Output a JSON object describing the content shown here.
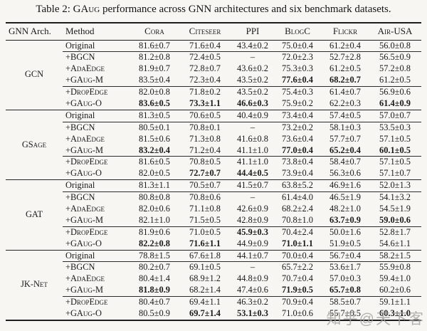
{
  "title": {
    "prefix": "Table 2: ",
    "smallcaps_word": "GAug",
    "suffix": " performance across GNN architectures and six benchmark datasets."
  },
  "table": {
    "headers": [
      {
        "label": "GNN Arch.",
        "sc": false
      },
      {
        "label": "Method",
        "sc": false
      },
      {
        "label": "Cora",
        "sc": true
      },
      {
        "label": "Citeseer",
        "sc": true
      },
      {
        "label": "PPI",
        "sc": true
      },
      {
        "label": "BlogC",
        "sc": true
      },
      {
        "label": "Flickr",
        "sc": true
      },
      {
        "label": "Air-USA",
        "sc": true
      }
    ],
    "groups": [
      {
        "arch": "GCN",
        "arch_sc": false,
        "rows": [
          {
            "method": "Original",
            "sc": false,
            "values": [
              "81.6±0.7",
              "71.6±0.4",
              "43.4±0.2",
              "75.0±0.4",
              "61.2±0.4",
              "56.0±0.8"
            ],
            "bold": []
          },
          {
            "method": "+BGCN",
            "sc": false,
            "values": [
              "81.2±0.8",
              "72.4±0.5",
              "–",
              "72.0±2.3",
              "52.7±2.8",
              "56.5±0.9"
            ],
            "bold": []
          },
          {
            "method": "+AdaEdge",
            "sc": true,
            "values": [
              "81.9±0.7",
              "72.8±0.7",
              "43.6±0.2",
              "75.3±0.3",
              "61.2±0.5",
              "57.2±0.8"
            ],
            "bold": []
          },
          {
            "method": "+GAug-M",
            "sc": true,
            "values": [
              "83.5±0.4",
              "72.3±0.4",
              "43.5±0.2",
              "77.6±0.4",
              "68.2±0.7",
              "61.2±0.5"
            ],
            "bold": [
              3,
              4
            ]
          },
          {
            "method": "+DropEdge",
            "sc": true,
            "values": [
              "82.0±0.8",
              "71.8±0.2",
              "43.5±0.2",
              "75.4±0.3",
              "61.4±0.7",
              "56.9±0.6"
            ],
            "bold": []
          },
          {
            "method": "+GAug-O",
            "sc": true,
            "values": [
              "83.6±0.5",
              "73.3±1.1",
              "46.6±0.3",
              "75.9±0.2",
              "62.2±0.3",
              "61.4±0.9"
            ],
            "bold": [
              0,
              1,
              2,
              5
            ]
          }
        ]
      },
      {
        "arch": "GSage",
        "arch_sc": true,
        "rows": [
          {
            "method": "Original",
            "sc": false,
            "values": [
              "81.3±0.5",
              "70.6±0.5",
              "40.4±0.9",
              "73.4±0.4",
              "57.4±0.5",
              "57.0±0.7"
            ],
            "bold": []
          },
          {
            "method": "+BGCN",
            "sc": false,
            "values": [
              "80.5±0.1",
              "70.8±0.1",
              "–",
              "73.2±0.2",
              "58.1±0.3",
              "53.5±0.3"
            ],
            "bold": []
          },
          {
            "method": "+AdaEdge",
            "sc": true,
            "values": [
              "81.5±0.6",
              "71.3±0.8",
              "41.6±0.8",
              "73.6±0.4",
              "57.7±0.7",
              "57.1±0.5"
            ],
            "bold": []
          },
          {
            "method": "+GAug-M",
            "sc": true,
            "values": [
              "83.2±0.4",
              "71.2±0.4",
              "41.1±1.0",
              "77.0±0.4",
              "65.2±0.4",
              "60.1±0.5"
            ],
            "bold": [
              0,
              3,
              4,
              5
            ]
          },
          {
            "method": "+DropEdge",
            "sc": true,
            "values": [
              "81.6±0.5",
              "70.8±0.5",
              "41.1±1.0",
              "73.8±0.4",
              "58.4±0.7",
              "57.1±0.5"
            ],
            "bold": []
          },
          {
            "method": "+GAug-O",
            "sc": true,
            "values": [
              "82.0±0.5",
              "72.7±0.7",
              "44.4±0.5",
              "73.9±0.4",
              "56.3±0.6",
              "57.1±0.7"
            ],
            "bold": [
              1,
              2
            ]
          }
        ]
      },
      {
        "arch": "GAT",
        "arch_sc": false,
        "rows": [
          {
            "method": "Original",
            "sc": false,
            "values": [
              "81.3±1.1",
              "70.5±0.7",
              "41.5±0.7",
              "63.8±5.2",
              "46.9±1.6",
              "52.0±1.3"
            ],
            "bold": []
          },
          {
            "method": "+BGCN",
            "sc": false,
            "values": [
              "80.8±0.8",
              "70.8±0.6",
              "–",
              "61.4±4.0",
              "46.5±1.9",
              "54.1±3.2"
            ],
            "bold": []
          },
          {
            "method": "+AdaEdge",
            "sc": true,
            "values": [
              "82.0±0.6",
              "71.1±0.8",
              "42.6±0.9",
              "68.2±2.4",
              "48.2±1.0",
              "54.5±1.9"
            ],
            "bold": []
          },
          {
            "method": "+GAug-M",
            "sc": true,
            "values": [
              "82.1±1.0",
              "71.5±0.5",
              "42.8±0.9",
              "70.8±1.0",
              "63.7±0.9",
              "59.0±0.6"
            ],
            "bold": [
              4,
              5
            ]
          },
          {
            "method": "+DropEdge",
            "sc": true,
            "values": [
              "81.9±0.6",
              "71.0±0.5",
              "45.9±0.3",
              "70.4±2.4",
              "50.0±1.6",
              "52.8±1.7"
            ],
            "bold": [
              2
            ]
          },
          {
            "method": "+GAug-O",
            "sc": true,
            "values": [
              "82.2±0.8",
              "71.6±1.1",
              "44.9±0.9",
              "71.0±1.1",
              "51.9±0.5",
              "54.6±1.1"
            ],
            "bold": [
              0,
              1,
              3
            ]
          }
        ]
      },
      {
        "arch": "JK-Net",
        "arch_sc": true,
        "rows": [
          {
            "method": "Original",
            "sc": false,
            "values": [
              "78.8±1.5",
              "67.6±1.8",
              "44.1±0.7",
              "70.0±0.4",
              "56.7±0.4",
              "58.2±1.5"
            ],
            "bold": []
          },
          {
            "method": "+BGCN",
            "sc": false,
            "values": [
              "80.2±0.7",
              "69.1±0.5",
              "–",
              "65.7±2.2",
              "53.6±1.7",
              "55.9±0.8"
            ],
            "bold": []
          },
          {
            "method": "+AdaEdge",
            "sc": true,
            "values": [
              "80.4±1.4",
              "68.9±1.2",
              "44.8±0.9",
              "70.7±0.4",
              "57.0±0.3",
              "59.4±1.0"
            ],
            "bold": []
          },
          {
            "method": "+GAug-M",
            "sc": true,
            "values": [
              "81.8±0.9",
              "68.2±1.4",
              "47.4±0.6",
              "71.9±0.5",
              "65.7±0.8",
              "60.2±0.6"
            ],
            "bold": [
              0,
              3,
              4
            ]
          },
          {
            "method": "+DropEdge",
            "sc": true,
            "values": [
              "80.4±0.7",
              "69.4±1.1",
              "46.3±0.2",
              "70.9±0.4",
              "58.5±0.7",
              "59.1±1.1"
            ],
            "bold": []
          },
          {
            "method": "+GAug-O",
            "sc": true,
            "values": [
              "80.5±0.9",
              "69.7±1.4",
              "53.1±0.3",
              "71.0±0.6",
              "55.7±0.5",
              "60.3±1.0"
            ],
            "bold": [
              1,
              2,
              5
            ]
          }
        ]
      }
    ]
  },
  "watermark": "知乎@天下客"
}
